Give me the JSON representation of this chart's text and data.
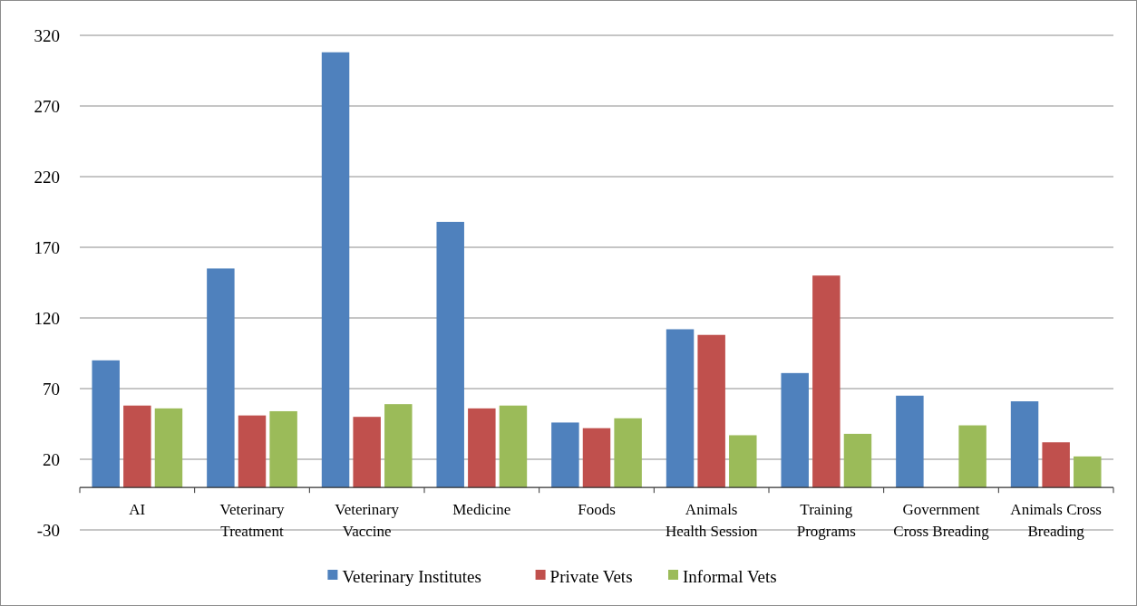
{
  "chart_data": {
    "type": "bar",
    "categories": [
      "AI",
      "Veterinary Treatment",
      "Veterinary Vaccine",
      "Medicine",
      "Foods",
      "Animals Health Session",
      "Training Programs",
      "Government Cross Breading",
      "Animals Cross Breading"
    ],
    "series": [
      {
        "name": "Veterinary Institutes",
        "color": "#4f81bd",
        "values": [
          90,
          155,
          308,
          188,
          46,
          112,
          81,
          65,
          61
        ]
      },
      {
        "name": "Private Vets",
        "color": "#c0504d",
        "values": [
          58,
          51,
          50,
          56,
          42,
          108,
          150,
          null,
          32
        ]
      },
      {
        "name": "Informal Vets",
        "color": "#9bbb59",
        "values": [
          56,
          54,
          59,
          58,
          49,
          37,
          38,
          44,
          22
        ]
      }
    ],
    "ylim": [
      -30,
      320
    ],
    "yticks": [
      -30,
      20,
      70,
      120,
      170,
      220,
      270,
      320
    ],
    "grid": "y",
    "legend": "bottom"
  }
}
